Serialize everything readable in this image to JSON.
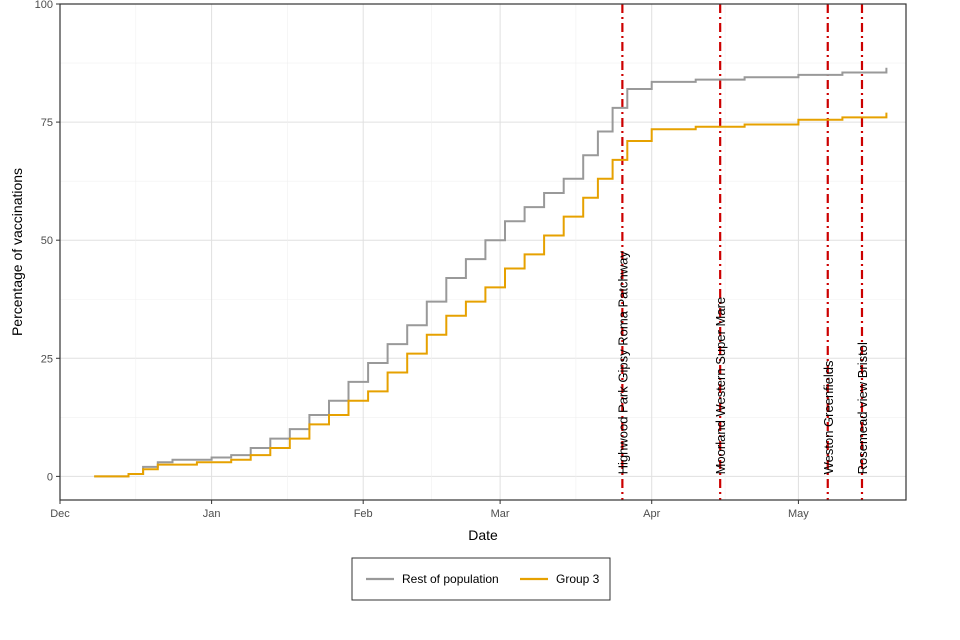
{
  "chart_data": {
    "type": "line",
    "step": true,
    "xlabel": "Date",
    "ylabel": "Percentage of vaccinations",
    "x_ticks": [
      {
        "date": "2020-12-01",
        "label": "Dec"
      },
      {
        "date": "2021-01-01",
        "label": "Jan"
      },
      {
        "date": "2021-02-01",
        "label": "Feb"
      },
      {
        "date": "2021-03-01",
        "label": "Mar"
      },
      {
        "date": "2021-04-01",
        "label": "Apr"
      },
      {
        "date": "2021-05-01",
        "label": "May"
      }
    ],
    "xlim": [
      "2020-12-01",
      "2021-05-23"
    ],
    "ylim": [
      -5,
      100
    ],
    "y_ticks": [
      0,
      25,
      50,
      75,
      100
    ],
    "grid": true,
    "legend_position": "bottom",
    "series": [
      {
        "name": "Rest of population",
        "color": "#999999",
        "points": [
          [
            "2020-12-08",
            0
          ],
          [
            "2020-12-15",
            0.5
          ],
          [
            "2020-12-18",
            2
          ],
          [
            "2020-12-21",
            3
          ],
          [
            "2020-12-24",
            3.5
          ],
          [
            "2020-12-29",
            3.5
          ],
          [
            "2021-01-01",
            4
          ],
          [
            "2021-01-05",
            4.5
          ],
          [
            "2021-01-09",
            6
          ],
          [
            "2021-01-13",
            8
          ],
          [
            "2021-01-17",
            10
          ],
          [
            "2021-01-21",
            13
          ],
          [
            "2021-01-25",
            16
          ],
          [
            "2021-01-29",
            20
          ],
          [
            "2021-02-02",
            24
          ],
          [
            "2021-02-06",
            28
          ],
          [
            "2021-02-10",
            32
          ],
          [
            "2021-02-14",
            37
          ],
          [
            "2021-02-18",
            42
          ],
          [
            "2021-02-22",
            46
          ],
          [
            "2021-02-26",
            50
          ],
          [
            "2021-03-02",
            54
          ],
          [
            "2021-03-06",
            57
          ],
          [
            "2021-03-10",
            60
          ],
          [
            "2021-03-14",
            63
          ],
          [
            "2021-03-18",
            68
          ],
          [
            "2021-03-21",
            73
          ],
          [
            "2021-03-24",
            78
          ],
          [
            "2021-03-27",
            82
          ],
          [
            "2021-04-01",
            83.5
          ],
          [
            "2021-04-10",
            84
          ],
          [
            "2021-04-20",
            84.5
          ],
          [
            "2021-05-01",
            85
          ],
          [
            "2021-05-10",
            85.5
          ],
          [
            "2021-05-19",
            86.5
          ]
        ]
      },
      {
        "name": "Group 3",
        "color": "#e6a100",
        "points": [
          [
            "2020-12-08",
            0
          ],
          [
            "2020-12-15",
            0.5
          ],
          [
            "2020-12-18",
            1.5
          ],
          [
            "2020-12-21",
            2.5
          ],
          [
            "2020-12-24",
            2.5
          ],
          [
            "2020-12-29",
            3
          ],
          [
            "2021-01-01",
            3
          ],
          [
            "2021-01-05",
            3.5
          ],
          [
            "2021-01-09",
            4.5
          ],
          [
            "2021-01-13",
            6
          ],
          [
            "2021-01-17",
            8
          ],
          [
            "2021-01-21",
            11
          ],
          [
            "2021-01-25",
            13
          ],
          [
            "2021-01-29",
            16
          ],
          [
            "2021-02-02",
            18
          ],
          [
            "2021-02-06",
            22
          ],
          [
            "2021-02-10",
            26
          ],
          [
            "2021-02-14",
            30
          ],
          [
            "2021-02-18",
            34
          ],
          [
            "2021-02-22",
            37
          ],
          [
            "2021-02-26",
            40
          ],
          [
            "2021-03-02",
            44
          ],
          [
            "2021-03-06",
            47
          ],
          [
            "2021-03-10",
            51
          ],
          [
            "2021-03-14",
            55
          ],
          [
            "2021-03-18",
            59
          ],
          [
            "2021-03-21",
            63
          ],
          [
            "2021-03-24",
            67
          ],
          [
            "2021-03-27",
            71
          ],
          [
            "2021-04-01",
            73.5
          ],
          [
            "2021-04-10",
            74
          ],
          [
            "2021-04-20",
            74.5
          ],
          [
            "2021-05-01",
            75.5
          ],
          [
            "2021-05-10",
            76
          ],
          [
            "2021-05-19",
            77
          ]
        ]
      }
    ],
    "vertical_lines": [
      {
        "date": "2021-03-26",
        "label": "Highwood Park Gipsy Roma Patchway",
        "color": "#cc0000"
      },
      {
        "date": "2021-04-15",
        "label": "Moorland Western Super Mare",
        "color": "#cc0000"
      },
      {
        "date": "2021-05-07",
        "label": "Weston Greenfields",
        "color": "#cc0000"
      },
      {
        "date": "2021-05-14",
        "label": "Rosemead view Bristol",
        "color": "#cc0000"
      }
    ]
  }
}
